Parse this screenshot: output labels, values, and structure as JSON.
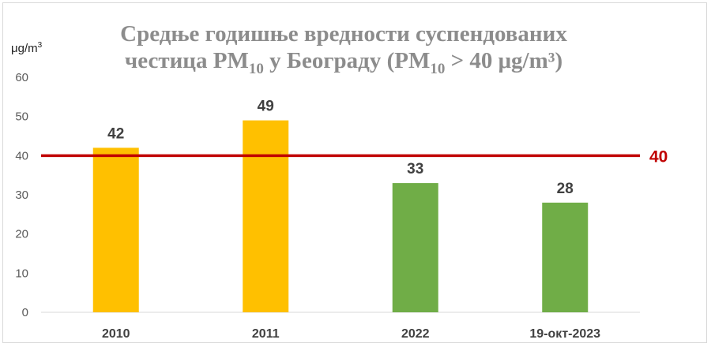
{
  "chart_data": {
    "type": "bar",
    "title_line1": "Средње годишње вредности суспендованих",
    "title_line2_a": "честица PM",
    "title_line2_sub1": "10",
    "title_line2_b": " у Београду  (PM",
    "title_line2_sub2": "10",
    "title_line2_c": " > 40 μg/m³)",
    "ylabel_main": "μg/m",
    "ylabel_sup": "3",
    "categories": [
      "2010",
      "2011",
      "2022",
      "19-окт-2023"
    ],
    "values": [
      42,
      49,
      33,
      28
    ],
    "value_labels": [
      "42",
      "49",
      "33",
      "28"
    ],
    "bar_colors": [
      "#ffc000",
      "#ffc000",
      "#70ad47",
      "#70ad47"
    ],
    "yticks": [
      0,
      10,
      20,
      30,
      40,
      50,
      60
    ],
    "ylim": [
      0,
      60
    ],
    "threshold": {
      "value": 40,
      "label": "40",
      "color": "#c00000"
    },
    "grid": false,
    "legend": "none"
  }
}
